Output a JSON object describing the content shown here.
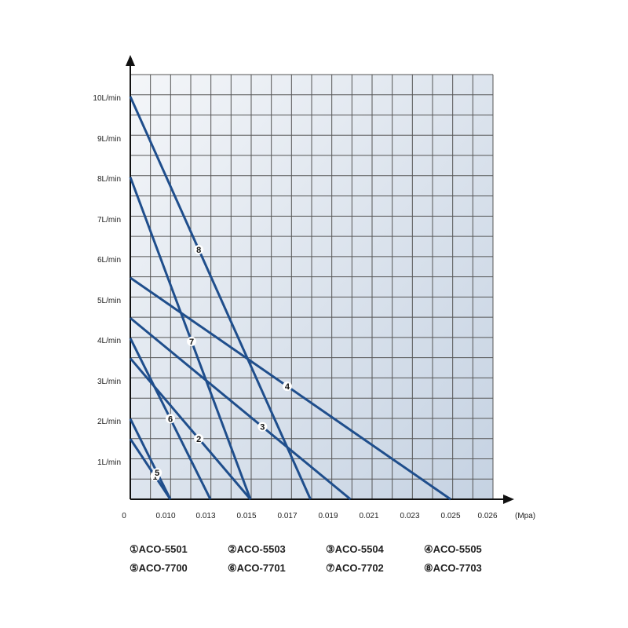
{
  "chart_data": {
    "type": "line",
    "title": "",
    "xlabel": "(Mpa)",
    "ylabel": "",
    "x_ticks": [
      "0",
      "0.010",
      "0.013",
      "0.015",
      "0.017",
      "0.019",
      "0.021",
      "0.023",
      "0.025",
      "0.026"
    ],
    "y_ticks": [
      "1L/min",
      "2L/min",
      "3L/min",
      "4L/min",
      "5L/min",
      "6L/min",
      "7L/min",
      "8L/min",
      "9L/min",
      "10L/min"
    ],
    "grid": true,
    "series": [
      {
        "marker": "1",
        "name": "ACO-5501",
        "flow_at_zero_lpm": 1.5,
        "zero_flow_pressure_mpa": 0.01
      },
      {
        "marker": "2",
        "name": "ACO-5503",
        "flow_at_zero_lpm": 3.5,
        "zero_flow_pressure_mpa": 0.015
      },
      {
        "marker": "3",
        "name": "ACO-5504",
        "flow_at_zero_lpm": 4.5,
        "zero_flow_pressure_mpa": 0.02
      },
      {
        "marker": "4",
        "name": "ACO-5505",
        "flow_at_zero_lpm": 5.5,
        "zero_flow_pressure_mpa": 0.025
      },
      {
        "marker": "5",
        "name": "ACO-7700",
        "flow_at_zero_lpm": 2.0,
        "zero_flow_pressure_mpa": 0.01
      },
      {
        "marker": "6",
        "name": "ACO-7701",
        "flow_at_zero_lpm": 4.0,
        "zero_flow_pressure_mpa": 0.013
      },
      {
        "marker": "7",
        "name": "ACO-7702",
        "flow_at_zero_lpm": 8.0,
        "zero_flow_pressure_mpa": 0.015
      },
      {
        "marker": "8",
        "name": "ACO-7703",
        "flow_at_zero_lpm": 10.0,
        "zero_flow_pressure_mpa": 0.018
      }
    ]
  },
  "legend": [
    "①ACO-5501",
    "②ACO-5503",
    "③ACO-5504",
    "④ACO-5505",
    "⑤ACO-7700",
    "⑥ACO-7701",
    "⑦ACO-7702",
    "⑧ACO-7703"
  ],
  "colors": {
    "line": "#1f4e8c",
    "grid": "#555555",
    "plot_bg_top": "#f2f5f9",
    "plot_bg_bottom": "#c7d4e4",
    "axis": "#111111"
  }
}
